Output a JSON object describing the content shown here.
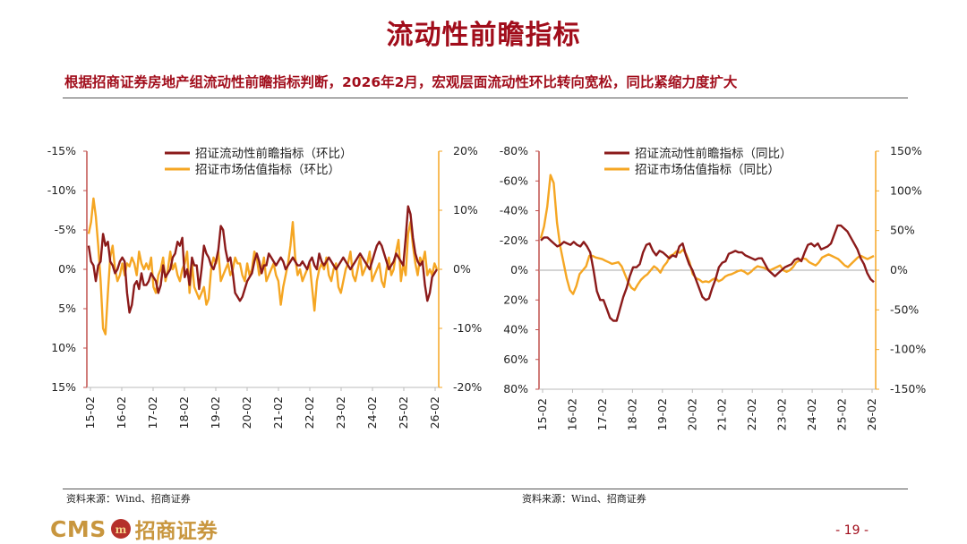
{
  "header": {
    "title": "流动性前瞻指标",
    "subtitle": "根据招商证券房地产组流动性前瞻指标判断，2026年2月，宏观层面流动性环比转向宽松，同比紧缩力度扩大"
  },
  "colors": {
    "dark_red": "#8b1a1a",
    "orange": "#f5a623",
    "axis": "#c0504d",
    "title": "#a10d1b"
  },
  "chart_data": [
    {
      "type": "line",
      "id": "mom",
      "x_labels": [
        "15-02",
        "16-02",
        "17-02",
        "18-02",
        "19-02",
        "20-02",
        "21-02",
        "22-02",
        "23-02",
        "24-02",
        "25-02",
        "26-02"
      ],
      "left_axis": {
        "ticks": [
          "-15%",
          "-10%",
          "-5%",
          "0%",
          "5%",
          "10%",
          "15%"
        ],
        "range": [
          -15,
          15
        ],
        "inverted": true
      },
      "right_axis": {
        "ticks": [
          "20%",
          "10%",
          "0%",
          "-10%",
          "-20%"
        ],
        "range": [
          -20,
          20
        ]
      },
      "legend": [
        "招证流动性前瞻指标（环比）",
        "招证市场估值指标（环比）"
      ],
      "series": [
        {
          "name": "招证流动性前瞻指标（环比）",
          "axis": "left",
          "color": "#8b1a1a",
          "values": [
            -3,
            -1,
            -0.5,
            1.5,
            -0.5,
            -1,
            -4.5,
            -3,
            -3.5,
            -1,
            -0.5,
            0.5,
            0,
            -1,
            -1.5,
            -1,
            3,
            5.5,
            4.5,
            2,
            1.5,
            2.5,
            0.5,
            2,
            2,
            1.5,
            0.5,
            1,
            1.5,
            3,
            2,
            -0.5,
            1,
            0.5,
            0,
            -1.5,
            -2,
            -3.5,
            -3,
            -4,
            1,
            0,
            2,
            -1.5,
            -0.5,
            -0.5,
            2.5,
            0,
            -3,
            -2,
            -1.5,
            -0.5,
            0,
            -1,
            -2.5,
            -5.5,
            -5,
            -2.5,
            -1,
            -1.5,
            0.5,
            3,
            3.5,
            4,
            3.5,
            2.5,
            1.5,
            1,
            0.5,
            -1,
            -2,
            -1,
            0.5,
            -0.5,
            -0.5,
            -2,
            -1.5,
            -1,
            -0.5,
            -1,
            -1.5,
            -1,
            0,
            -0.5,
            -1,
            -1.5,
            -1,
            -0.5,
            -0.5,
            -1,
            -0.5,
            0,
            -1,
            -1.5,
            -0.5,
            0,
            -2,
            -1,
            -0.5,
            -1,
            -1.5,
            -1,
            -0.5,
            0,
            -0.5,
            -1,
            -1.5,
            -1,
            -0.5,
            0,
            -0.5,
            -1,
            -1.5,
            -2,
            -1.5,
            -1,
            -0.5,
            0,
            -1,
            -2,
            -3,
            -3.5,
            -3,
            -2,
            -1,
            0,
            -0.5,
            -1,
            -2,
            -1.5,
            -1,
            -0.5,
            -4,
            -8,
            -7,
            -4,
            -2,
            -1,
            -0.5,
            -1,
            2,
            4,
            3,
            1,
            0.5,
            0
          ]
        },
        {
          "name": "招证市场估值指标（环比）",
          "axis": "right",
          "color": "#f5a623",
          "values": [
            6,
            8,
            12,
            9,
            4,
            -2,
            -10,
            -11,
            -4,
            2,
            4,
            0,
            -2,
            -1,
            1,
            -1,
            1,
            0.5,
            2,
            1,
            -1,
            3,
            1,
            0,
            1,
            0,
            2,
            -3,
            -4,
            -1,
            0,
            2,
            -2,
            0,
            3,
            0,
            1,
            -1,
            -2,
            0,
            1,
            3,
            -4,
            1,
            -3,
            -4,
            -5,
            -4,
            -3,
            -6,
            -5,
            0,
            2,
            1,
            3,
            -2,
            -1,
            0,
            1,
            -1,
            0,
            2,
            1,
            1,
            -1,
            -2,
            1,
            -1,
            0,
            3,
            2,
            -1,
            0,
            2,
            -2,
            -1,
            0,
            1,
            -1,
            -2,
            -6,
            -3,
            -1,
            1,
            4,
            8,
            2,
            -1,
            0,
            -2,
            -1,
            0,
            1,
            -3,
            -7,
            -2,
            0,
            1,
            0,
            2,
            -1,
            -2,
            0,
            1,
            -3,
            -4,
            -2,
            0,
            1,
            3,
            -1,
            -2,
            0,
            2,
            -1,
            0,
            1,
            3,
            -2,
            -1,
            0,
            1,
            -2,
            -3,
            0,
            2,
            -1,
            0,
            3,
            5,
            -2,
            1,
            -1,
            6,
            8,
            4,
            1,
            -1,
            2,
            1,
            3,
            -1,
            0,
            -1,
            1,
            0
          ]
        }
      ]
    },
    {
      "type": "line",
      "id": "yoy",
      "x_labels": [
        "15-02",
        "16-02",
        "17-02",
        "18-02",
        "19-02",
        "20-02",
        "21-02",
        "22-02",
        "23-02",
        "24-02",
        "25-02",
        "26-02"
      ],
      "left_axis": {
        "ticks": [
          "-80%",
          "-60%",
          "-40%",
          "-20%",
          "0%",
          "20%",
          "40%",
          "60%",
          "80%"
        ],
        "range": [
          -80,
          80
        ],
        "inverted": true
      },
      "right_axis": {
        "ticks": [
          "150%",
          "100%",
          "50%",
          "0%",
          "-50%",
          "-100%",
          "-150%"
        ],
        "range": [
          -150,
          150
        ]
      },
      "legend": [
        "招证流动性前瞻指标（同比）",
        "招证市场估值指标（同比）"
      ],
      "series": [
        {
          "name": "招证流动性前瞻指标（同比）",
          "axis": "left",
          "color": "#8b1a1a",
          "values": [
            -20,
            -22,
            -22,
            -20,
            -18,
            -16,
            -17,
            -19,
            -18,
            -17,
            -19,
            -17,
            -16,
            -19,
            -16,
            -12,
            0,
            14,
            20,
            20,
            26,
            32,
            34,
            34,
            26,
            18,
            12,
            4,
            -2,
            -2,
            -4,
            -12,
            -17,
            -18,
            -13,
            -10,
            -13,
            -12,
            -10,
            -8,
            -10,
            -9,
            -16,
            -18,
            -10,
            -4,
            0,
            6,
            12,
            18,
            20,
            19,
            12,
            6,
            -2,
            -5,
            -6,
            -11,
            -12,
            -13,
            -12,
            -12,
            -10,
            -9,
            -8,
            -7,
            -8,
            -8,
            -4,
            0,
            2,
            4,
            2,
            0,
            -2,
            -3,
            -4,
            -7,
            -8,
            -6,
            -12,
            -17,
            -18,
            -16,
            -18,
            -14,
            -15,
            -16,
            -18,
            -24,
            -30,
            -30,
            -28,
            -26,
            -22,
            -18,
            -14,
            -8,
            -4,
            2,
            6,
            8
          ]
        },
        {
          "name": "招证市场估值指标（同比）",
          "axis": "right",
          "color": "#f5a623",
          "values": [
            40,
            55,
            80,
            120,
            110,
            60,
            30,
            10,
            -10,
            -25,
            -30,
            -20,
            -5,
            0,
            5,
            18,
            18,
            16,
            15,
            14,
            12,
            10,
            8,
            9,
            10,
            5,
            -5,
            -15,
            -22,
            -25,
            -18,
            -12,
            -8,
            -5,
            0,
            5,
            2,
            -3,
            5,
            10,
            18,
            20,
            24,
            22,
            26,
            20,
            10,
            -5,
            -10,
            -12,
            -15,
            -14,
            -15,
            -12,
            -10,
            -14,
            -12,
            -8,
            -6,
            -5,
            -3,
            -1,
            0,
            -2,
            -5,
            -2,
            2,
            5,
            4,
            3,
            1,
            0,
            2,
            4,
            6,
            0,
            -2,
            0,
            4,
            10,
            12,
            15,
            14,
            10,
            8,
            6,
            10,
            16,
            18,
            20,
            18,
            16,
            14,
            10,
            6,
            4,
            8,
            12,
            16,
            18,
            16,
            14,
            16,
            18
          ]
        }
      ]
    }
  ],
  "footer": {
    "source_left": "资料来源：Wind、招商证券",
    "source_right": "资料来源：Wind、招商证券",
    "logo_en": "CMS",
    "logo_cn": "招商证券",
    "page_number": "- 19 -"
  }
}
